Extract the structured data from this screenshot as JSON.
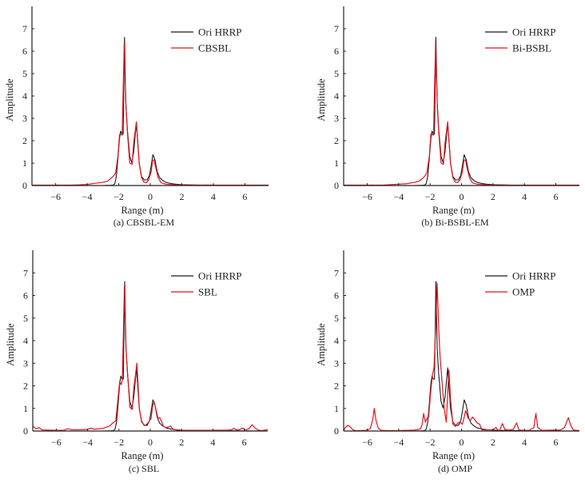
{
  "figure": {
    "panel_count": 4
  },
  "chart_data": [
    {
      "type": "line",
      "panel": "a",
      "caption": "(a) CBSBL-EM",
      "title": "",
      "xlabel": "Range (m)",
      "ylabel": "Amplitude",
      "xlim": [
        -7.5,
        7.5
      ],
      "ylim": [
        0,
        8
      ],
      "xticks": [
        -6,
        -4,
        -2,
        0,
        2,
        4,
        6
      ],
      "xtick_labels": [
        "−6",
        "−4",
        "−2",
        "0",
        "2",
        "4",
        "6"
      ],
      "yticks": [
        0,
        1,
        2,
        3,
        4,
        5,
        6,
        7
      ],
      "ytick_labels": [
        "0",
        "1",
        "2",
        "3",
        "4",
        "5",
        "6",
        "7"
      ],
      "grid": false,
      "legend": {
        "position": "top-right",
        "entries": [
          "Ori HRRP",
          "CBSBL"
        ]
      },
      "series": [
        {
          "name": "Ori HRRP",
          "color": "#1a1a1a",
          "ref": "ori"
        },
        {
          "name": "CBSBL",
          "color": "#e0141e",
          "x": [
            -7.5,
            -5.0,
            -4.5,
            -4.0,
            -3.5,
            -3.0,
            -2.7,
            -2.5,
            -2.3,
            -2.2,
            -2.05,
            -1.95,
            -1.85,
            -1.78,
            -1.65,
            -1.55,
            -1.45,
            -1.3,
            -1.15,
            -1.05,
            -0.88,
            -0.7,
            -0.55,
            -0.4,
            -0.25,
            -0.1,
            0.05,
            0.15,
            0.25,
            0.35,
            0.5,
            0.7,
            1.0,
            1.5,
            2.0,
            3.0,
            7.5
          ],
          "y": [
            0.02,
            0.02,
            0.03,
            0.05,
            0.1,
            0.14,
            0.2,
            0.32,
            0.45,
            0.55,
            1.3,
            2.27,
            2.27,
            2.25,
            6.4,
            3.7,
            2.4,
            1.0,
            0.95,
            1.9,
            2.85,
            1.0,
            0.35,
            0.15,
            0.12,
            0.25,
            0.6,
            1.12,
            1.15,
            0.8,
            0.35,
            0.12,
            0.06,
            0.03,
            0.02,
            0.02,
            0.02
          ]
        }
      ]
    },
    {
      "type": "line",
      "panel": "b",
      "caption": "(b) Bi-BSBL-EM",
      "title": "",
      "xlabel": "Range (m)",
      "ylabel": "Amplitude",
      "xlim": [
        -7.5,
        7.5
      ],
      "ylim": [
        0,
        8
      ],
      "xticks": [
        -6,
        -4,
        -2,
        0,
        2,
        4,
        6
      ],
      "xtick_labels": [
        "−6",
        "−4",
        "−2",
        "0",
        "2",
        "4",
        "6"
      ],
      "yticks": [
        0,
        1,
        2,
        3,
        4,
        5,
        6,
        7
      ],
      "ytick_labels": [
        "0",
        "1",
        "2",
        "3",
        "4",
        "5",
        "6",
        "7"
      ],
      "grid": false,
      "legend": {
        "position": "top-right",
        "entries": [
          "Ori HRRP",
          "Bi-BSBL"
        ]
      },
      "series": [
        {
          "name": "Ori HRRP",
          "color": "#1a1a1a",
          "ref": "ori"
        },
        {
          "name": "Bi-BSBL",
          "color": "#e0141e",
          "x": [
            -7.5,
            -5.0,
            -4.5,
            -4.0,
            -3.5,
            -3.0,
            -2.7,
            -2.5,
            -2.3,
            -2.2,
            -2.05,
            -1.95,
            -1.85,
            -1.78,
            -1.65,
            -1.55,
            -1.45,
            -1.3,
            -1.15,
            -1.05,
            -0.88,
            -0.7,
            -0.55,
            -0.4,
            -0.25,
            -0.1,
            0.05,
            0.15,
            0.25,
            0.35,
            0.5,
            0.7,
            1.0,
            1.5,
            2.0,
            3.0,
            7.5
          ],
          "y": [
            0.02,
            0.02,
            0.04,
            0.06,
            0.08,
            0.14,
            0.2,
            0.3,
            0.45,
            0.6,
            1.3,
            2.3,
            2.27,
            2.25,
            6.45,
            3.7,
            2.4,
            1.0,
            0.95,
            1.9,
            2.85,
            1.0,
            0.35,
            0.15,
            0.13,
            0.25,
            0.6,
            1.12,
            1.15,
            0.8,
            0.35,
            0.12,
            0.06,
            0.03,
            0.02,
            0.02,
            0.02
          ]
        }
      ]
    },
    {
      "type": "line",
      "panel": "c",
      "caption": "(c) SBL",
      "title": "",
      "xlabel": "Range (m)",
      "ylabel": "Amplitude",
      "xlim": [
        -7.5,
        7.5
      ],
      "ylim": [
        0,
        8
      ],
      "xticks": [
        -6,
        -4,
        -2,
        0,
        2,
        4,
        6
      ],
      "xtick_labels": [
        "−6",
        "−4",
        "−2",
        "0",
        "2",
        "4",
        "6"
      ],
      "yticks": [
        0,
        1,
        2,
        3,
        4,
        5,
        6,
        7
      ],
      "ytick_labels": [
        "0",
        "1",
        "2",
        "3",
        "4",
        "5",
        "6",
        "7"
      ],
      "grid": false,
      "legend": {
        "position": "top-right",
        "entries": [
          "Ori HRRP",
          "SBL"
        ]
      },
      "series": [
        {
          "name": "Ori HRRP",
          "color": "#1a1a1a",
          "ref": "ori"
        },
        {
          "name": "SBL",
          "color": "#e0141e",
          "x": [
            -7.5,
            -7.3,
            -7.1,
            -6.9,
            -6.5,
            -6.0,
            -5.5,
            -5.3,
            -5.0,
            -4.5,
            -4.0,
            -3.8,
            -3.6,
            -3.0,
            -2.6,
            -2.4,
            -2.2,
            -2.05,
            -1.95,
            -1.85,
            -1.78,
            -1.65,
            -1.55,
            -1.45,
            -1.3,
            -1.15,
            -1.05,
            -0.85,
            -0.7,
            -0.55,
            -0.4,
            -0.25,
            -0.1,
            0.05,
            0.15,
            0.25,
            0.35,
            0.5,
            0.6,
            0.7,
            0.85,
            1.0,
            1.15,
            1.3,
            1.45,
            1.7,
            2.0,
            3.0,
            4.0,
            5.0,
            5.2,
            5.35,
            5.5,
            5.7,
            5.9,
            6.1,
            6.3,
            6.5,
            6.7,
            6.9,
            7.1,
            7.3,
            7.5
          ],
          "y": [
            0.22,
            0.1,
            0.15,
            0.05,
            0.04,
            0.03,
            0.03,
            0.1,
            0.06,
            0.06,
            0.07,
            0.13,
            0.08,
            0.12,
            0.22,
            0.35,
            0.45,
            1.5,
            2.2,
            2.05,
            2.3,
            6.45,
            3.7,
            2.6,
            1.05,
            0.95,
            1.9,
            3.0,
            1.0,
            0.45,
            0.25,
            0.28,
            0.4,
            0.55,
            1.1,
            1.28,
            1.0,
            0.55,
            0.6,
            0.45,
            0.2,
            0.15,
            0.18,
            0.22,
            0.08,
            0.04,
            0.03,
            0.03,
            0.03,
            0.04,
            0.06,
            0.12,
            0.05,
            0.06,
            0.13,
            0.05,
            0.1,
            0.28,
            0.12,
            0.04,
            0.02,
            0.04,
            0.06
          ]
        }
      ]
    },
    {
      "type": "line",
      "panel": "d",
      "caption": "(d) OMP",
      "title": "",
      "xlabel": "Range (m)",
      "ylabel": "Amplitude",
      "xlim": [
        -7.5,
        7.5
      ],
      "ylim": [
        0,
        8
      ],
      "xticks": [
        -6,
        -4,
        -2,
        0,
        2,
        4,
        6
      ],
      "xtick_labels": [
        "−6",
        "−4",
        "−2",
        "0",
        "2",
        "4",
        "6"
      ],
      "yticks": [
        0,
        1,
        2,
        3,
        4,
        5,
        6,
        7
      ],
      "ytick_labels": [
        "0",
        "1",
        "2",
        "3",
        "4",
        "5",
        "6",
        "7"
      ],
      "grid": false,
      "legend": {
        "position": "top-right",
        "entries": [
          "Ori HRRP",
          "OMP"
        ]
      },
      "series": [
        {
          "name": "Ori HRRP",
          "color": "#1a1a1a",
          "ref": "ori"
        },
        {
          "name": "OMP",
          "color": "#e0141e",
          "x": [
            -7.5,
            -7.4,
            -7.25,
            -7.1,
            -6.95,
            -6.8,
            -6.5,
            -6.0,
            -5.8,
            -5.65,
            -5.55,
            -5.45,
            -5.3,
            -5.1,
            -4.8,
            -4.0,
            -3.0,
            -2.6,
            -2.5,
            -2.41,
            -2.3,
            -2.2,
            -2.1,
            -1.95,
            -1.85,
            -1.75,
            -1.65,
            -1.55,
            -1.45,
            -1.37,
            -1.2,
            -1.1,
            -0.97,
            -0.85,
            -0.8,
            -0.7,
            -0.55,
            -0.4,
            -0.25,
            -0.1,
            0.05,
            0.15,
            0.26,
            0.4,
            0.55,
            0.7,
            0.85,
            1.0,
            1.07,
            1.15,
            1.3,
            1.6,
            2.0,
            2.2,
            2.3,
            2.42,
            2.6,
            2.75,
            3.0,
            3.3,
            3.5,
            3.65,
            3.9,
            4.3,
            4.6,
            4.73,
            4.85,
            5.1,
            5.8,
            6.3,
            6.55,
            6.8,
            6.95,
            7.1,
            7.3,
            7.5
          ],
          "y": [
            0.02,
            0.15,
            0.25,
            0.2,
            0.08,
            0.02,
            0.02,
            0.03,
            0.12,
            0.5,
            1.0,
            0.5,
            0.12,
            0.03,
            0.02,
            0.02,
            0.04,
            0.1,
            0.3,
            0.78,
            0.39,
            0.57,
            0.6,
            1.8,
            2.5,
            2.8,
            4.5,
            6.55,
            4.5,
            3.36,
            1.8,
            1.0,
            0.39,
            2.1,
            2.7,
            1.4,
            0.3,
            0.2,
            0.35,
            0.4,
            0.3,
            0.55,
            0.91,
            0.6,
            0.45,
            0.62,
            0.5,
            0.35,
            0.33,
            0.3,
            0.05,
            0.05,
            0.06,
            0.16,
            0.05,
            0.02,
            0.33,
            0.08,
            0.04,
            0.08,
            0.36,
            0.05,
            0.03,
            0.03,
            0.15,
            0.78,
            0.15,
            0.03,
            0.04,
            0.05,
            0.15,
            0.59,
            0.25,
            0.05,
            0.03,
            0.02
          ]
        }
      ]
    }
  ],
  "shared_series": {
    "ori": {
      "name": "Ori HRRP",
      "x": [
        -7.5,
        -3.0,
        -2.5,
        -2.35,
        -2.25,
        -2.15,
        -2.05,
        -1.95,
        -1.88,
        -1.8,
        -1.72,
        -1.63,
        -1.55,
        -1.45,
        -1.3,
        -1.17,
        -1.05,
        -0.88,
        -0.7,
        -0.55,
        -0.37,
        -0.2,
        -0.05,
        0.05,
        0.17,
        0.3,
        0.45,
        0.6,
        0.8,
        1.0,
        1.3,
        1.6,
        2.0,
        2.5,
        3.0,
        7.5
      ],
      "y": [
        0.0,
        0.0,
        0.01,
        0.02,
        0.08,
        0.4,
        1.2,
        2.1,
        2.43,
        2.3,
        2.3,
        6.62,
        3.7,
        2.5,
        1.3,
        1.02,
        1.5,
        2.8,
        1.0,
        0.4,
        0.25,
        0.25,
        0.45,
        0.85,
        1.38,
        1.15,
        0.6,
        0.35,
        0.22,
        0.14,
        0.09,
        0.06,
        0.04,
        0.03,
        0.02,
        0.0
      ]
    }
  }
}
